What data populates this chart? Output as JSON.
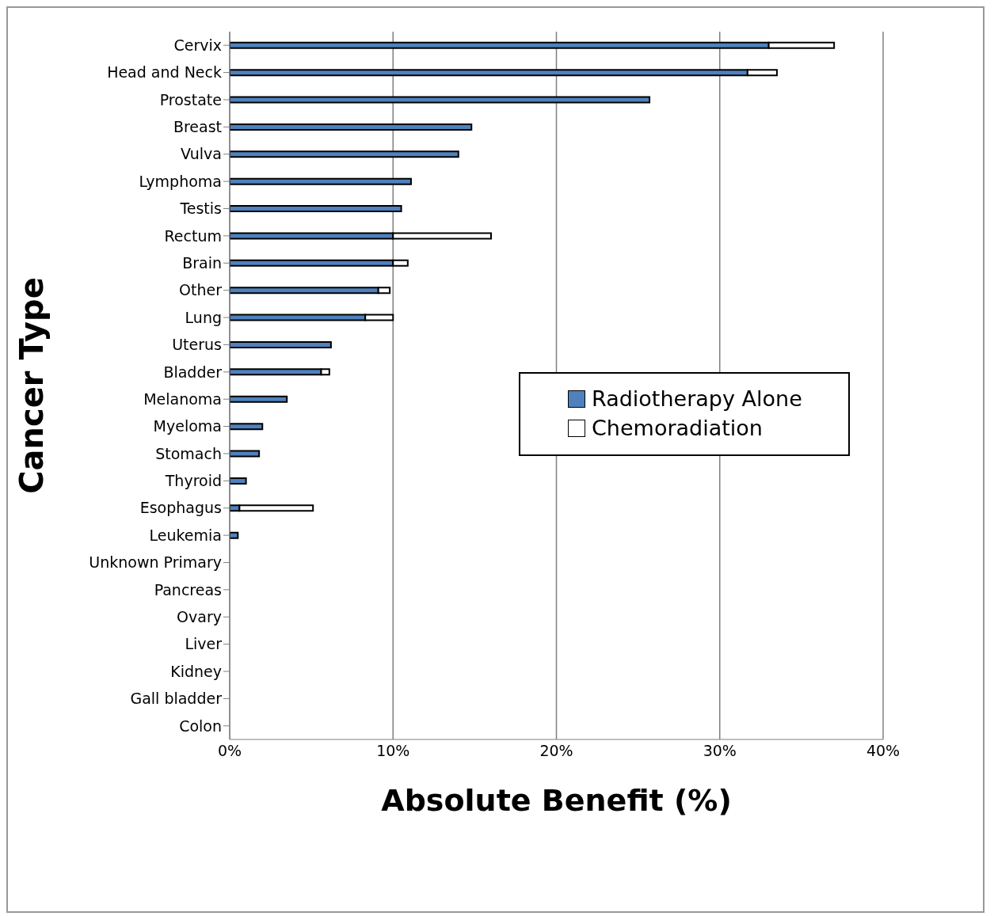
{
  "chart_data": {
    "type": "bar",
    "orientation": "horizontal",
    "stacked": true,
    "xlabel": "Absolute Benefit (%)",
    "ylabel": "Cancer Type",
    "categories": [
      "Cervix",
      "Head and Neck",
      "Prostate",
      "Breast",
      "Vulva",
      "Lymphoma",
      "Testis",
      "Rectum",
      "Brain",
      "Other",
      "Lung",
      "Uterus",
      "Bladder",
      "Melanoma",
      "Myeloma",
      "Stomach",
      "Thyroid",
      "Esophagus",
      "Leukemia",
      "Unknown Primary",
      "Pancreas",
      "Ovary",
      "Liver",
      "Kidney",
      "Gall bladder",
      "Colon"
    ],
    "series": [
      {
        "name": "Radiotherapy Alone",
        "color": "#4f81bd",
        "values": [
          33.0,
          31.7,
          25.7,
          14.8,
          14.0,
          11.1,
          10.5,
          10.0,
          10.0,
          9.1,
          8.3,
          6.2,
          5.6,
          3.5,
          2.0,
          1.8,
          1.0,
          0.6,
          0.5,
          0,
          0,
          0,
          0,
          0,
          0,
          0
        ]
      },
      {
        "name": "Chemoradiation",
        "color": "#ffffff",
        "values": [
          4.0,
          1.8,
          0,
          0,
          0,
          0,
          0,
          6.0,
          0.9,
          0.7,
          1.7,
          0,
          0.5,
          0,
          0,
          0,
          0,
          4.5,
          0,
          0,
          0,
          0,
          0,
          0,
          0,
          0
        ]
      }
    ],
    "xlim": [
      0,
      40
    ],
    "xticks": [
      {
        "value": 0,
        "label": "0%"
      },
      {
        "value": 10,
        "label": "10%"
      },
      {
        "value": 20,
        "label": "20%"
      },
      {
        "value": 30,
        "label": "30%"
      },
      {
        "value": 40,
        "label": "40%"
      }
    ],
    "grid": "x",
    "legend": "right"
  }
}
